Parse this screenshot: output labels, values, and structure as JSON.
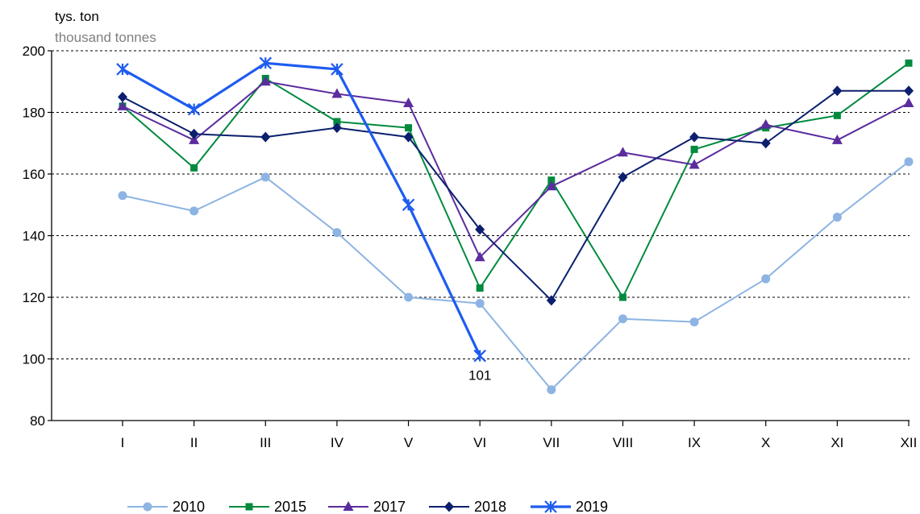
{
  "chart_data": {
    "type": "line",
    "ylabel": "tys. ton",
    "ylabel_en": "thousand tonnes",
    "xlabel": "",
    "categories": [
      "I",
      "II",
      "III",
      "IV",
      "V",
      "VI",
      "VII",
      "VIII",
      "IX",
      "X",
      "XI",
      "XII"
    ],
    "ylim": [
      80,
      200
    ],
    "yticks": [
      80,
      100,
      120,
      140,
      160,
      180,
      200
    ],
    "grid": "horizontal-dashed",
    "legend_position": "bottom",
    "series": [
      {
        "name": "2010",
        "color": "#8db4e2",
        "marker": "circle",
        "values": [
          153,
          148,
          159,
          141,
          120,
          118,
          90,
          113,
          112,
          126,
          146,
          164
        ]
      },
      {
        "name": "2015",
        "color": "#008a3e",
        "marker": "square",
        "values": [
          182,
          162,
          191,
          177,
          175,
          123,
          158,
          120,
          168,
          175,
          179,
          196
        ]
      },
      {
        "name": "2017",
        "color": "#5b2c9e",
        "marker": "triangle",
        "values": [
          182,
          171,
          190,
          186,
          183,
          133,
          156,
          167,
          163,
          176,
          171,
          183
        ]
      },
      {
        "name": "2018",
        "color": "#0b1f6e",
        "marker": "diamond",
        "values": [
          185,
          173,
          172,
          175,
          172,
          142,
          119,
          159,
          172,
          170,
          187,
          187
        ]
      },
      {
        "name": "2019",
        "color": "#1e5cf0",
        "marker": "star",
        "values": [
          194,
          181,
          196,
          194,
          150,
          101,
          null,
          null,
          null,
          null,
          null,
          null
        ]
      }
    ],
    "annotations": [
      {
        "series": "2019",
        "category": "VI",
        "text": "101"
      }
    ]
  }
}
